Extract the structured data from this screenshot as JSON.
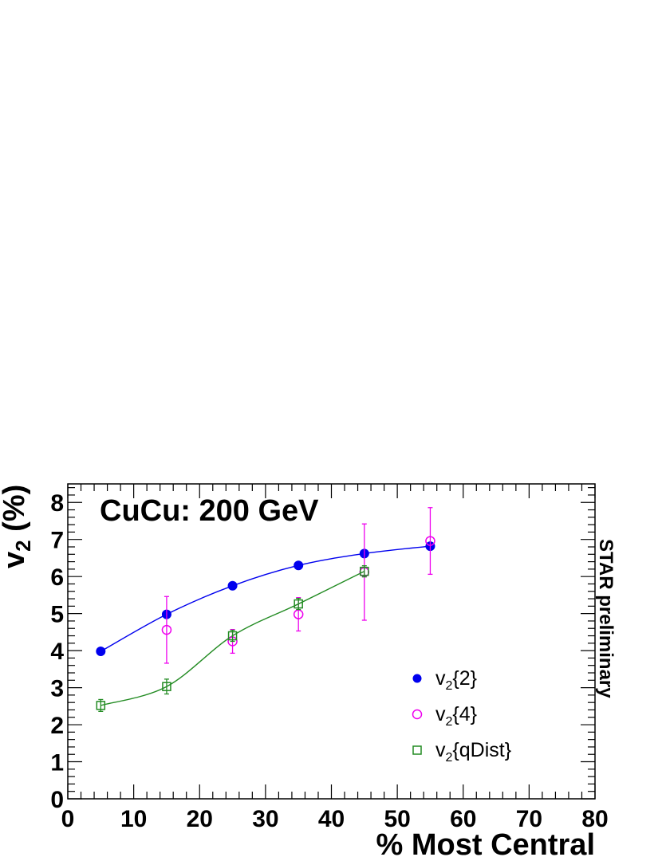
{
  "chart_data": {
    "type": "scatter",
    "title": "CuCu: 200 GeV",
    "watermark": "STAR preliminary",
    "xlabel": "% Most Central",
    "ylabel_main": "v",
    "ylabel_sub": "2",
    "ylabel_tail": " (%)",
    "xlim": [
      0,
      80
    ],
    "ylim": [
      0,
      8.5
    ],
    "xticks": [
      0,
      10,
      20,
      30,
      40,
      50,
      60,
      70,
      80
    ],
    "yticks": [
      0,
      1,
      2,
      3,
      4,
      5,
      6,
      7,
      8
    ],
    "grid": false,
    "legend_position": "bottom-right",
    "series": [
      {
        "name": "v2{2}",
        "legend_main": "v",
        "legend_sub": "2",
        "legend_tail": "{2}",
        "marker": "filled-circle",
        "color": "#0000ee",
        "x": [
          5,
          15,
          25,
          35,
          45,
          55
        ],
        "y": [
          3.98,
          4.98,
          5.75,
          6.3,
          6.62,
          6.82
        ],
        "yerr": [
          0.04,
          0.04,
          0.04,
          0.04,
          0.04,
          0.04
        ],
        "curve": true
      },
      {
        "name": "v2{4}",
        "legend_main": "v",
        "legend_sub": "2",
        "legend_tail": "{4}",
        "marker": "open-circle",
        "color": "#ee00ee",
        "x": [
          15,
          25,
          35,
          45,
          55
        ],
        "y": [
          4.56,
          4.25,
          4.98,
          6.12,
          6.96
        ],
        "yerr": [
          0.9,
          0.32,
          0.45,
          1.3,
          0.9
        ],
        "curve": false
      },
      {
        "name": "v2{qDist}",
        "legend_main": "v",
        "legend_sub": "2",
        "legend_tail": "{qDist}",
        "marker": "open-square",
        "color": "#228b22",
        "x": [
          5,
          15,
          25,
          35,
          45
        ],
        "y": [
          2.52,
          3.03,
          4.4,
          5.26,
          6.14
        ],
        "yerr": [
          0.16,
          0.2,
          0.15,
          0.15,
          0.15
        ],
        "curve": true
      }
    ]
  }
}
